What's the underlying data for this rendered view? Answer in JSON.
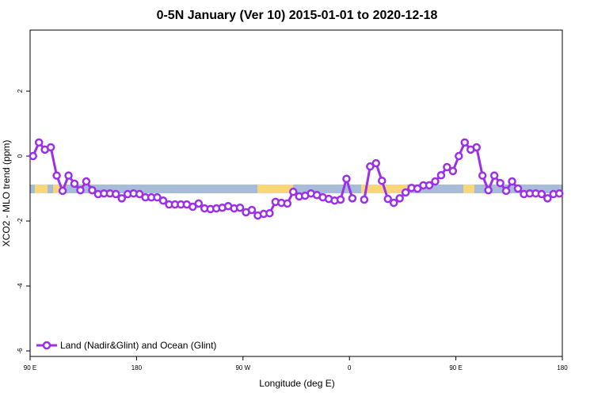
{
  "chart_data": {
    "type": "line",
    "title": "0-5N January (Ver 10)   2015-01-01 to 2020-12-18",
    "x_label": "Longitude (deg E)",
    "y_label": "XCO2 - MLO trend (ppm)",
    "x": [
      92.5,
      97.5,
      102.5,
      107.5,
      112.5,
      117.5,
      122.5,
      127.5,
      132.5,
      137.5,
      142.5,
      147.5,
      152.5,
      157.5,
      162.5,
      167.5,
      172.5,
      177.5,
      182.5,
      187.5,
      192.5,
      197.5,
      202.5,
      207.5,
      212.5,
      217.5,
      222.5,
      227.5,
      232.5,
      237.5,
      242.5,
      247.5,
      252.5,
      257.5,
      262.5,
      267.5,
      272.5,
      277.5,
      282.5,
      287.5,
      292.5,
      297.5,
      302.5,
      307.5,
      312.5,
      317.5,
      322.5,
      327.5,
      332.5,
      337.5,
      342.5,
      347.5,
      352.5,
      357.5,
      362.5,
      367.5,
      372.5,
      377.5,
      382.5,
      387.5,
      392.5,
      397.5,
      402.5,
      407.5,
      412.5,
      417.5,
      422.5,
      427.5,
      432.5,
      437.5,
      442.5,
      447.5,
      452.5,
      457.5,
      462.5,
      467.5,
      472.5,
      477.5,
      482.5,
      487.5,
      492.5,
      497.5,
      502.5,
      507.5,
      512.5,
      517.5,
      522.5,
      527.5,
      532.5,
      537.5
    ],
    "series": [
      {
        "name": "Land (Nadir&Glint) and Ocean (Glint)",
        "color": "#9b30e8",
        "values": [
          0.0,
          0.42,
          0.2,
          0.27,
          -0.6,
          -1.07,
          -0.6,
          -0.85,
          -1.05,
          -0.78,
          -1.05,
          -1.17,
          -1.15,
          -1.15,
          -1.17,
          -1.3,
          -1.17,
          -1.15,
          -1.17,
          -1.27,
          -1.27,
          -1.27,
          -1.37,
          -1.49,
          -1.49,
          -1.49,
          -1.49,
          -1.56,
          -1.46,
          -1.61,
          -1.63,
          -1.61,
          -1.59,
          -1.54,
          -1.61,
          -1.59,
          -1.73,
          -1.66,
          -1.83,
          -1.78,
          -1.76,
          -1.41,
          -1.44,
          -1.46,
          -1.1,
          -1.24,
          -1.22,
          -1.15,
          -1.2,
          -1.27,
          -1.32,
          -1.37,
          -1.34,
          -0.7,
          -1.3,
          null,
          -1.34,
          -0.32,
          -0.22,
          -0.76,
          -1.32,
          -1.44,
          -1.3,
          -1.12,
          -0.98,
          -1.0,
          -0.9,
          -0.9,
          -0.78,
          -0.59,
          -0.34,
          -0.46,
          0.0,
          0.42,
          0.2,
          0.27,
          -0.6,
          -1.05,
          -0.6,
          -0.83,
          -1.07,
          -0.78,
          -1.0,
          -1.17,
          -1.15,
          -1.15,
          -1.17,
          -1.3,
          -1.17,
          -1.15
        ]
      }
    ],
    "xlim": [
      90,
      540
    ],
    "xticks": [
      {
        "value": 90,
        "label": "90 E"
      },
      180,
      {
        "value": 270,
        "label": "90 W"
      },
      {
        "value": 360,
        "label": "0"
      },
      {
        "value": 450,
        "label": "90 E"
      },
      {
        "value": 540,
        "label": "180"
      }
    ],
    "ylim": [
      -6.17,
      3.88
    ],
    "yticks": [
      -6,
      -4,
      -2,
      0,
      2
    ],
    "legend_position": "bottomleft"
  }
}
